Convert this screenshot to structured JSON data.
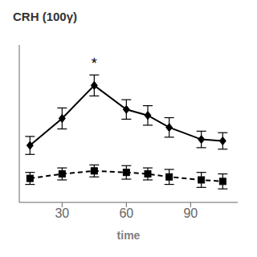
{
  "chart_data": {
    "type": "line",
    "title": "CRH (100γ)",
    "x_label": "time",
    "x": [
      15,
      30,
      45,
      60,
      70,
      80,
      95,
      105
    ],
    "series": [
      {
        "values": [
          0.38,
          0.56,
          0.78,
          0.62,
          0.58,
          0.5,
          0.42,
          0.41
        ],
        "yerr": [
          0.06,
          0.07,
          0.07,
          0.065,
          0.065,
          0.065,
          0.055,
          0.055
        ],
        "color": "black",
        "marker": "diamond",
        "line_style": "solid"
      },
      {
        "values": [
          0.16,
          0.19,
          0.21,
          0.2,
          0.19,
          0.17,
          0.15,
          0.14
        ],
        "yerr": [
          0.04,
          0.04,
          0.04,
          0.045,
          0.04,
          0.05,
          0.05,
          0.05
        ],
        "color": "black",
        "marker": "square",
        "line_style": "dashed"
      }
    ],
    "annotations": [
      {
        "text": "*",
        "x": 45,
        "y": 0.87
      }
    ],
    "xlim": [
      10,
      112
    ],
    "ylim": [
      0.0,
      1.05
    ],
    "xticks": [
      30,
      60,
      90
    ],
    "tick_labels": "x",
    "grid": false
  }
}
